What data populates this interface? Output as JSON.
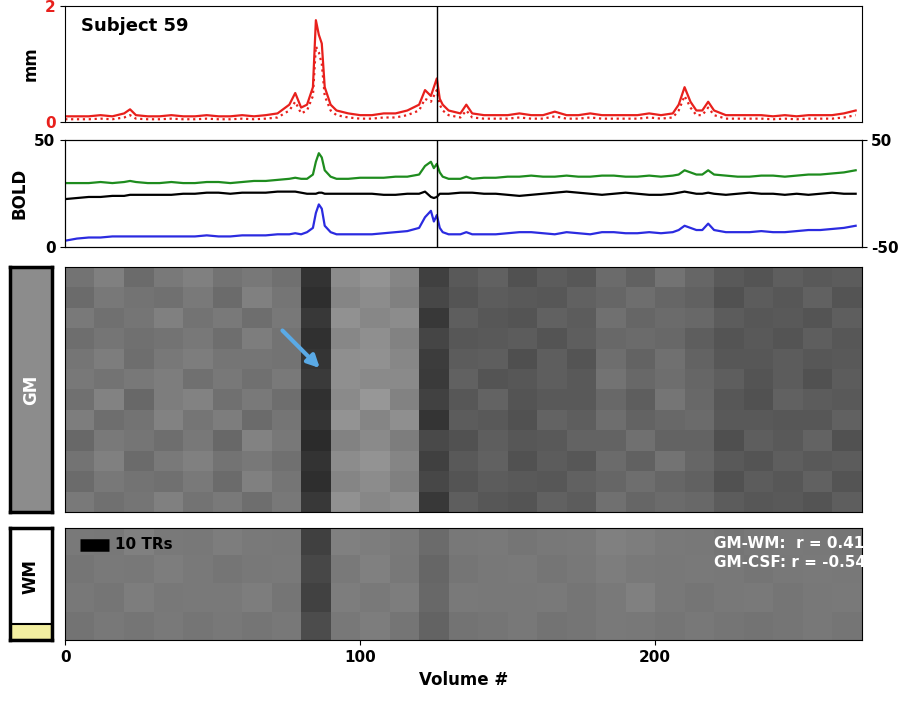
{
  "chart_data": [
    {
      "type": "line",
      "title": "Subject 59",
      "ylabel": "mm",
      "xlim": [
        0,
        270
      ],
      "ylim": [
        0,
        2
      ],
      "yticks": [
        0,
        2
      ],
      "tick_labels": "y",
      "vline": 126,
      "x": [
        0,
        4,
        8,
        12,
        16,
        20,
        22,
        24,
        28,
        32,
        36,
        40,
        44,
        48,
        52,
        56,
        60,
        64,
        68,
        72,
        76,
        78,
        80,
        82,
        84,
        85,
        86,
        87,
        88,
        90,
        92,
        96,
        100,
        104,
        108,
        112,
        116,
        120,
        122,
        124,
        125,
        126,
        127,
        128,
        130,
        134,
        136,
        138,
        142,
        146,
        150,
        154,
        158,
        162,
        166,
        170,
        174,
        178,
        182,
        186,
        190,
        194,
        198,
        202,
        206,
        208,
        210,
        212,
        214,
        216,
        218,
        220,
        224,
        228,
        232,
        236,
        240,
        244,
        248,
        252,
        256,
        260,
        264,
        268
      ],
      "series": [
        {
          "color": "#e8201c",
          "line_style": "solid",
          "values": [
            0.1,
            0.1,
            0.1,
            0.12,
            0.1,
            0.15,
            0.22,
            0.12,
            0.1,
            0.1,
            0.12,
            0.1,
            0.1,
            0.12,
            0.1,
            0.1,
            0.12,
            0.1,
            0.12,
            0.15,
            0.3,
            0.5,
            0.25,
            0.3,
            0.6,
            1.75,
            1.5,
            1.35,
            0.6,
            0.3,
            0.2,
            0.15,
            0.12,
            0.12,
            0.15,
            0.15,
            0.2,
            0.3,
            0.55,
            0.45,
            0.6,
            0.75,
            0.4,
            0.3,
            0.2,
            0.15,
            0.3,
            0.15,
            0.12,
            0.12,
            0.12,
            0.15,
            0.12,
            0.12,
            0.18,
            0.12,
            0.12,
            0.15,
            0.12,
            0.12,
            0.12,
            0.12,
            0.15,
            0.12,
            0.15,
            0.3,
            0.6,
            0.35,
            0.2,
            0.2,
            0.35,
            0.2,
            0.12,
            0.12,
            0.12,
            0.12,
            0.1,
            0.12,
            0.1,
            0.12,
            0.12,
            0.12,
            0.15,
            0.2
          ]
        },
        {
          "color": "#e8201c",
          "line_style": "dotted",
          "values": [
            0.05,
            0.05,
            0.05,
            0.06,
            0.05,
            0.08,
            0.12,
            0.06,
            0.05,
            0.05,
            0.06,
            0.05,
            0.05,
            0.06,
            0.05,
            0.05,
            0.06,
            0.05,
            0.06,
            0.08,
            0.2,
            0.35,
            0.15,
            0.2,
            0.45,
            1.3,
            1.2,
            1.0,
            0.45,
            0.2,
            0.12,
            0.08,
            0.06,
            0.06,
            0.08,
            0.08,
            0.12,
            0.2,
            0.4,
            0.35,
            0.45,
            0.55,
            0.3,
            0.2,
            0.12,
            0.08,
            0.2,
            0.08,
            0.06,
            0.06,
            0.06,
            0.08,
            0.06,
            0.06,
            0.1,
            0.06,
            0.06,
            0.08,
            0.06,
            0.06,
            0.06,
            0.06,
            0.08,
            0.06,
            0.08,
            0.2,
            0.45,
            0.25,
            0.12,
            0.12,
            0.25,
            0.12,
            0.06,
            0.06,
            0.06,
            0.06,
            0.05,
            0.06,
            0.05,
            0.06,
            0.06,
            0.06,
            0.08,
            0.12
          ]
        }
      ]
    },
    {
      "type": "line",
      "ylabel": "BOLD",
      "xlim": [
        0,
        270
      ],
      "ylim": [
        0,
        50
      ],
      "yticks": [
        0,
        50
      ],
      "y2lim": [
        -50,
        50
      ],
      "y2ticks": [
        -50,
        50
      ],
      "tick_labels": "y",
      "vline": 126,
      "x": [
        0,
        4,
        8,
        12,
        16,
        20,
        22,
        24,
        28,
        32,
        36,
        40,
        44,
        48,
        52,
        56,
        60,
        64,
        68,
        72,
        76,
        78,
        80,
        82,
        84,
        85,
        86,
        87,
        88,
        90,
        92,
        96,
        100,
        104,
        108,
        112,
        116,
        120,
        122,
        124,
        125,
        126,
        127,
        128,
        130,
        134,
        136,
        138,
        142,
        146,
        150,
        154,
        158,
        162,
        166,
        170,
        174,
        178,
        182,
        186,
        190,
        194,
        198,
        202,
        206,
        208,
        210,
        212,
        214,
        216,
        218,
        220,
        224,
        228,
        232,
        236,
        240,
        244,
        248,
        252,
        256,
        260,
        264,
        268
      ],
      "series": [
        {
          "color": "#1e8c1e",
          "values": [
            30,
            30,
            30,
            30.5,
            30,
            30.5,
            31,
            30.5,
            30,
            30,
            30.5,
            30,
            30,
            30.5,
            30.5,
            30,
            30.5,
            31,
            31,
            31.5,
            32,
            32.5,
            32,
            32,
            34,
            40,
            44,
            42,
            36,
            33,
            32,
            32,
            32.5,
            32.5,
            32.5,
            33,
            33,
            34,
            38,
            40,
            37,
            39,
            35,
            33,
            32,
            32,
            33,
            32,
            32.5,
            32.5,
            33,
            33,
            33.5,
            33,
            33,
            33.5,
            33,
            33,
            33.5,
            33.5,
            33,
            33,
            33.5,
            33,
            33.5,
            34,
            36,
            35,
            34,
            34,
            36,
            34,
            33.5,
            33,
            33,
            33.5,
            33.5,
            33,
            33.5,
            34,
            34,
            34.5,
            35,
            36
          ]
        },
        {
          "color": "#000000",
          "axis": "y2",
          "values": [
            -5,
            -4,
            -3,
            -3,
            -2,
            -2,
            -1,
            -1,
            -1,
            -1,
            -1,
            0,
            0,
            1,
            1,
            0,
            1,
            1,
            1,
            2,
            2,
            2,
            1,
            0,
            0,
            0,
            1,
            1,
            0,
            0,
            0,
            0,
            0,
            0,
            -1,
            -1,
            0,
            0,
            2,
            -3,
            -4,
            -3,
            0,
            0,
            0,
            1,
            1,
            1,
            0,
            0,
            -1,
            -2,
            -1,
            0,
            1,
            2,
            1,
            0,
            -1,
            0,
            1,
            0,
            -1,
            -1,
            0,
            1,
            2,
            1,
            0,
            0,
            1,
            0,
            -1,
            0,
            1,
            0,
            0,
            -1,
            0,
            -1,
            0,
            1,
            0,
            0
          ]
        },
        {
          "color": "#2b2be0",
          "values": [
            3,
            4,
            4.5,
            4.5,
            5,
            5,
            5,
            5,
            5,
            5,
            5,
            5,
            5,
            5.5,
            5,
            5,
            5.5,
            5.5,
            5.5,
            6,
            6,
            6.5,
            6,
            7,
            9,
            16,
            20,
            18,
            10,
            7,
            6,
            6,
            6,
            6,
            6.5,
            7,
            7.5,
            9,
            14,
            17,
            12,
            15,
            9,
            7,
            6,
            6,
            7,
            6,
            6,
            6,
            6.5,
            7,
            7,
            6.5,
            6,
            7,
            6.5,
            6,
            7,
            7,
            6.5,
            6.5,
            7,
            6.5,
            7,
            8,
            10,
            9,
            8,
            8,
            11,
            8,
            7,
            7,
            7,
            7.5,
            7,
            7,
            7.5,
            8,
            8,
            8.5,
            9,
            10
          ]
        }
      ]
    },
    {
      "type": "heatmap",
      "label": "GM",
      "xlim": [
        0,
        270
      ],
      "tick_labels": false,
      "arrow_x": 87,
      "value_range": [
        0,
        1
      ],
      "cells": [
        [
          0.45,
          0.5,
          0.42,
          0.48,
          0.5,
          0.45,
          0.47,
          0.44,
          0.2,
          0.55,
          0.58,
          0.52,
          0.25,
          0.35,
          0.38,
          0.32,
          0.36,
          0.34,
          0.42,
          0.38,
          0.45,
          0.4,
          0.35,
          0.33,
          0.37,
          0.35,
          0.36
        ],
        [
          0.42,
          0.47,
          0.45,
          0.44,
          0.48,
          0.42,
          0.5,
          0.46,
          0.18,
          0.52,
          0.55,
          0.5,
          0.28,
          0.33,
          0.36,
          0.35,
          0.34,
          0.38,
          0.4,
          0.43,
          0.4,
          0.38,
          0.32,
          0.36,
          0.34,
          0.38,
          0.33
        ],
        [
          0.48,
          0.44,
          0.46,
          0.5,
          0.45,
          0.48,
          0.43,
          0.47,
          0.22,
          0.57,
          0.53,
          0.55,
          0.22,
          0.37,
          0.34,
          0.33,
          0.38,
          0.36,
          0.44,
          0.4,
          0.42,
          0.41,
          0.36,
          0.34,
          0.35,
          0.33,
          0.37
        ],
        [
          0.43,
          0.46,
          0.44,
          0.45,
          0.47,
          0.43,
          0.49,
          0.45,
          0.19,
          0.53,
          0.56,
          0.51,
          0.27,
          0.34,
          0.35,
          0.36,
          0.33,
          0.37,
          0.41,
          0.42,
          0.41,
          0.37,
          0.33,
          0.35,
          0.33,
          0.37,
          0.34
        ],
        [
          0.46,
          0.49,
          0.43,
          0.47,
          0.49,
          0.46,
          0.46,
          0.45,
          0.21,
          0.56,
          0.57,
          0.53,
          0.24,
          0.36,
          0.37,
          0.31,
          0.37,
          0.33,
          0.43,
          0.39,
          0.44,
          0.39,
          0.34,
          0.34,
          0.36,
          0.34,
          0.35
        ],
        [
          0.47,
          0.45,
          0.47,
          0.49,
          0.44,
          0.47,
          0.44,
          0.48,
          0.23,
          0.56,
          0.54,
          0.54,
          0.23,
          0.38,
          0.33,
          0.34,
          0.37,
          0.35,
          0.45,
          0.41,
          0.43,
          0.4,
          0.37,
          0.33,
          0.36,
          0.32,
          0.36
        ],
        [
          0.44,
          0.51,
          0.41,
          0.49,
          0.51,
          0.44,
          0.48,
          0.43,
          0.19,
          0.54,
          0.59,
          0.51,
          0.26,
          0.34,
          0.39,
          0.33,
          0.35,
          0.35,
          0.41,
          0.37,
          0.46,
          0.41,
          0.34,
          0.32,
          0.38,
          0.36,
          0.35
        ],
        [
          0.49,
          0.43,
          0.45,
          0.51,
          0.46,
          0.49,
          0.42,
          0.46,
          0.21,
          0.58,
          0.52,
          0.56,
          0.21,
          0.36,
          0.35,
          0.32,
          0.39,
          0.37,
          0.43,
          0.39,
          0.41,
          0.42,
          0.35,
          0.35,
          0.34,
          0.34,
          0.38
        ],
        [
          0.41,
          0.48,
          0.46,
          0.43,
          0.47,
          0.41,
          0.51,
          0.47,
          0.17,
          0.51,
          0.54,
          0.49,
          0.29,
          0.32,
          0.37,
          0.34,
          0.35,
          0.39,
          0.39,
          0.44,
          0.39,
          0.39,
          0.31,
          0.37,
          0.35,
          0.39,
          0.32
        ],
        [
          0.45,
          0.5,
          0.42,
          0.48,
          0.5,
          0.45,
          0.47,
          0.44,
          0.2,
          0.55,
          0.58,
          0.52,
          0.25,
          0.35,
          0.38,
          0.32,
          0.36,
          0.34,
          0.42,
          0.38,
          0.45,
          0.4,
          0.35,
          0.33,
          0.37,
          0.35,
          0.36
        ],
        [
          0.42,
          0.47,
          0.45,
          0.44,
          0.48,
          0.42,
          0.5,
          0.46,
          0.18,
          0.52,
          0.55,
          0.5,
          0.28,
          0.33,
          0.36,
          0.35,
          0.34,
          0.38,
          0.4,
          0.43,
          0.4,
          0.38,
          0.32,
          0.36,
          0.34,
          0.38,
          0.33
        ],
        [
          0.48,
          0.44,
          0.46,
          0.5,
          0.45,
          0.48,
          0.43,
          0.47,
          0.22,
          0.57,
          0.53,
          0.55,
          0.22,
          0.37,
          0.34,
          0.33,
          0.38,
          0.36,
          0.44,
          0.4,
          0.42,
          0.41,
          0.36,
          0.34,
          0.35,
          0.33,
          0.37
        ]
      ]
    },
    {
      "type": "heatmap",
      "label": "WM",
      "xlim": [
        0,
        270
      ],
      "xticks": [
        0,
        100,
        200
      ],
      "xlabel": "Volume #",
      "tick_labels": "x",
      "value_range": [
        0,
        1
      ],
      "scale_bar": {
        "length": 10,
        "label": "10 TRs"
      },
      "annotations": [
        "GM-WM:  r = 0.41",
        "GM-CSF: r = -0.54"
      ],
      "cells": [
        [
          0.48,
          0.47,
          0.5,
          0.48,
          0.47,
          0.49,
          0.48,
          0.47,
          0.25,
          0.5,
          0.49,
          0.48,
          0.42,
          0.47,
          0.48,
          0.46,
          0.47,
          0.48,
          0.5,
          0.49,
          0.48,
          0.47,
          0.46,
          0.47,
          0.48,
          0.47,
          0.46
        ],
        [
          0.46,
          0.48,
          0.47,
          0.49,
          0.48,
          0.46,
          0.47,
          0.48,
          0.28,
          0.48,
          0.5,
          0.47,
          0.4,
          0.46,
          0.47,
          0.48,
          0.46,
          0.47,
          0.49,
          0.48,
          0.47,
          0.48,
          0.47,
          0.46,
          0.47,
          0.48,
          0.47
        ],
        [
          0.47,
          0.46,
          0.49,
          0.47,
          0.48,
          0.48,
          0.49,
          0.46,
          0.26,
          0.49,
          0.48,
          0.49,
          0.41,
          0.48,
          0.47,
          0.47,
          0.48,
          0.46,
          0.48,
          0.5,
          0.47,
          0.46,
          0.47,
          0.48,
          0.46,
          0.47,
          0.48
        ],
        [
          0.45,
          0.47,
          0.46,
          0.48,
          0.46,
          0.47,
          0.46,
          0.47,
          0.3,
          0.47,
          0.49,
          0.46,
          0.39,
          0.45,
          0.46,
          0.47,
          0.45,
          0.46,
          0.48,
          0.47,
          0.46,
          0.47,
          0.46,
          0.45,
          0.46,
          0.47,
          0.46
        ]
      ]
    }
  ]
}
